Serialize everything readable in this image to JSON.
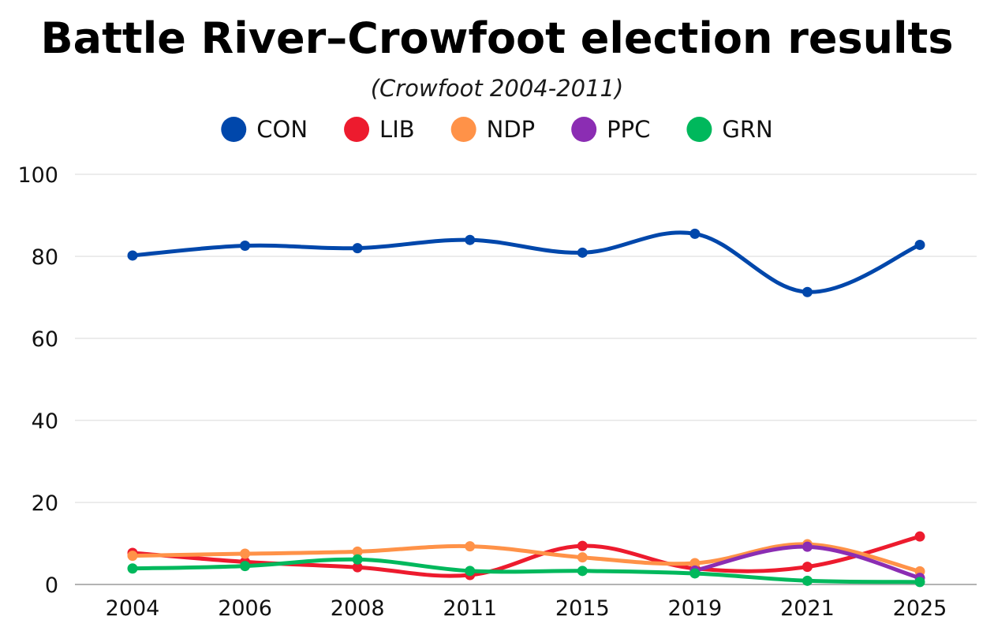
{
  "chart_data": {
    "type": "line",
    "title": "Battle River–Crowfoot election results",
    "subtitle": "(Crowfoot 2004-2011)",
    "categories": [
      "2004",
      "2006",
      "2008",
      "2011",
      "2015",
      "2019",
      "2021",
      "2025"
    ],
    "ylim": [
      0,
      100
    ],
    "yticks": [
      "0",
      "20",
      "40",
      "60",
      "80",
      "100"
    ],
    "grid": true,
    "legend_position": "top",
    "xlabel": "",
    "ylabel": "",
    "series": [
      {
        "name": "CON",
        "color": "#0047AB",
        "values": [
          80.2,
          82.6,
          82.0,
          84.0,
          80.9,
          85.5,
          71.3,
          82.8
        ]
      },
      {
        "name": "LIB",
        "color": "#ED1B2E",
        "values": [
          7.7,
          5.5,
          4.2,
          2.3,
          9.4,
          3.9,
          4.3,
          11.7
        ]
      },
      {
        "name": "NDP",
        "color": "#FF9248",
        "values": [
          7.0,
          7.5,
          8.0,
          9.3,
          6.6,
          5.2,
          9.8,
          3.2
        ]
      },
      {
        "name": "PPC",
        "color": "#8B2DB3",
        "values": [
          null,
          null,
          null,
          null,
          null,
          3.4,
          9.2,
          1.6
        ]
      },
      {
        "name": "GRN",
        "color": "#00B85C",
        "values": [
          3.9,
          4.5,
          6.1,
          3.3,
          3.3,
          2.7,
          0.9,
          0.6
        ]
      }
    ]
  }
}
